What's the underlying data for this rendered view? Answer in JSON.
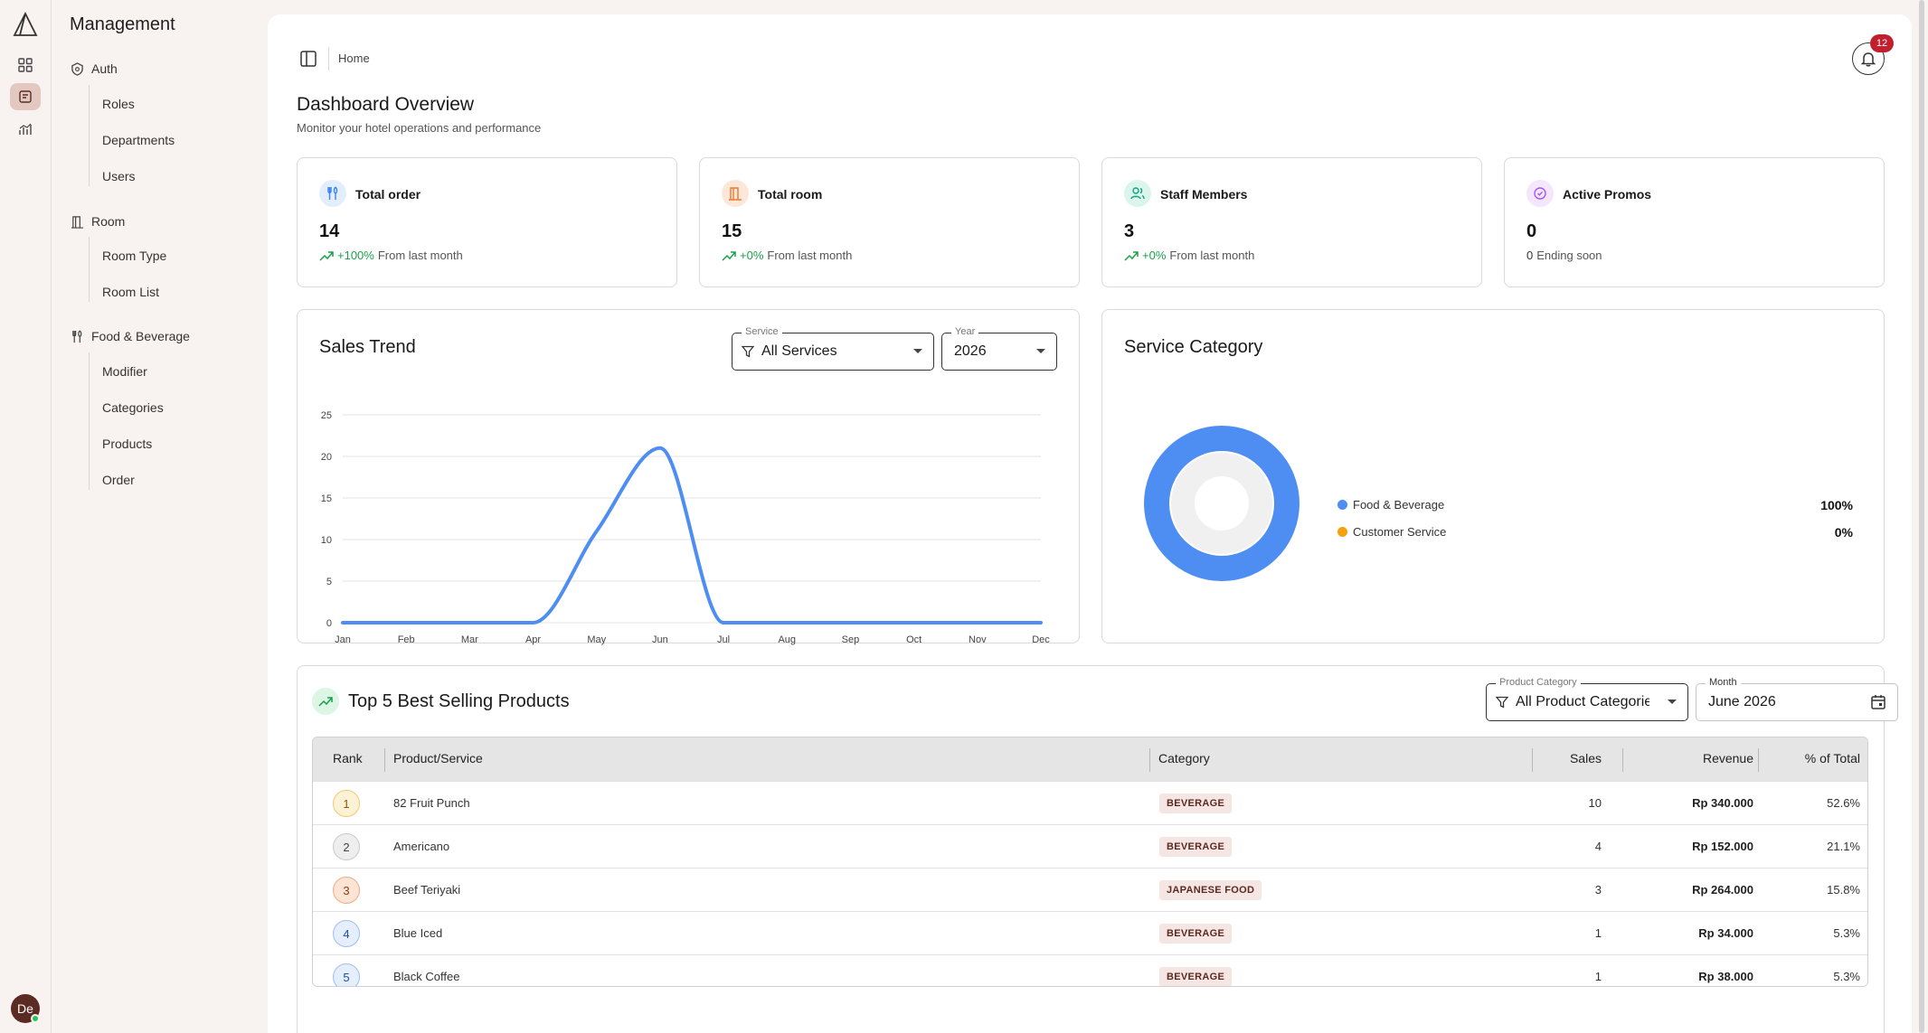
{
  "sidebar": {
    "title": "Management",
    "groups": [
      {
        "label": "Auth",
        "icon": "shield-icon",
        "items": [
          "Roles",
          "Departments",
          "Users"
        ]
      },
      {
        "label": "Room",
        "icon": "door-icon",
        "items": [
          "Room Type",
          "Room List"
        ]
      },
      {
        "label": "Food & Beverage",
        "icon": "utensils-icon",
        "items": [
          "Modifier",
          "Categories",
          "Products",
          "Order"
        ]
      }
    ]
  },
  "rail": {
    "avatar_initials": "De"
  },
  "header": {
    "breadcrumb": "Home",
    "notification_count": "12",
    "title": "Dashboard Overview",
    "subtitle": "Monitor your hotel operations and performance"
  },
  "stats": [
    {
      "label": "Total order",
      "value": "14",
      "change": "+100%",
      "note": "From last month",
      "icon": "utensils-icon",
      "color": "#3b82f6",
      "bg": "#e3eefd"
    },
    {
      "label": "Total room",
      "value": "15",
      "change": "+0%",
      "note": "From last month",
      "icon": "door-icon",
      "color": "#ea7a2e",
      "bg": "#fde7d9"
    },
    {
      "label": "Staff Members",
      "value": "3",
      "change": "+0%",
      "note": "From last month",
      "icon": "users-icon",
      "color": "#10a37f",
      "bg": "#dcf5ec"
    },
    {
      "label": "Active Promos",
      "value": "0",
      "change": "0",
      "note": "Ending soon",
      "icon": "badge-check-icon",
      "color": "#a855f7",
      "bg": "#f3e6fd"
    }
  ],
  "sales_trend": {
    "title": "Sales Trend",
    "service_label": "Service",
    "service_value": "All Services",
    "year_label": "Year",
    "year_value": "2026"
  },
  "service_category": {
    "title": "Service Category",
    "legend": [
      {
        "name": "Food & Beverage",
        "pct": "100%",
        "color": "#4e8ef2"
      },
      {
        "name": "Customer Service",
        "pct": "0%",
        "color": "#f5a10e"
      }
    ]
  },
  "top_products": {
    "title": "Top 5 Best Selling Products",
    "category_label": "Product Category",
    "category_value": "All Product Categories",
    "month_label": "Month",
    "month_value": "June 2026",
    "columns": [
      "Rank",
      "Product/Service",
      "Category",
      "Sales",
      "Revenue",
      "% of Total"
    ],
    "rows": [
      {
        "rank": "1",
        "name": "82 Fruit Punch",
        "category": "BEVERAGE",
        "sales": "10",
        "revenue": "Rp 340.000",
        "pct": "52.6%",
        "rank_bg": "#fdf1d6",
        "rank_border": "#f2c96b",
        "rank_color": "#8a5a00"
      },
      {
        "rank": "2",
        "name": "Americano",
        "category": "BEVERAGE",
        "sales": "4",
        "revenue": "Rp 152.000",
        "pct": "21.1%",
        "rank_bg": "#eeeeee",
        "rank_border": "#c9c9c9",
        "rank_color": "#444444"
      },
      {
        "rank": "3",
        "name": "Beef Teriyaki",
        "category": "JAPANESE FOOD",
        "sales": "3",
        "revenue": "Rp 264.000",
        "pct": "15.8%",
        "rank_bg": "#fde4d4",
        "rank_border": "#f0a983",
        "rank_color": "#8a3d10"
      },
      {
        "rank": "4",
        "name": "Blue Iced",
        "category": "BEVERAGE",
        "sales": "1",
        "revenue": "Rp 34.000",
        "pct": "5.3%",
        "rank_bg": "#e4eefd",
        "rank_border": "#9dbdf2",
        "rank_color": "#1f4fa8"
      },
      {
        "rank": "5",
        "name": "Black Coffee",
        "category": "BEVERAGE",
        "sales": "1",
        "revenue": "Rp 38.000",
        "pct": "5.3%",
        "rank_bg": "#e4eefd",
        "rank_border": "#9dbdf2",
        "rank_color": "#1f4fa8"
      }
    ]
  },
  "chart_data": [
    {
      "type": "line",
      "title": "Sales Trend",
      "categories": [
        "Jan",
        "Feb",
        "Mar",
        "Apr",
        "May",
        "Jun",
        "Jul",
        "Aug",
        "Sep",
        "Oct",
        "Nov",
        "Dec"
      ],
      "series": [
        {
          "values": [
            0,
            0,
            0,
            0,
            11,
            21,
            0,
            0,
            0,
            0,
            0,
            0
          ],
          "color": "#4e8ef2"
        }
      ],
      "ylim": [
        0,
        25
      ],
      "yticks": [
        0,
        5,
        10,
        15,
        20,
        25
      ],
      "grid": true
    },
    {
      "type": "pie",
      "title": "Service Category",
      "categories": [
        "Food & Beverage",
        "Customer Service"
      ],
      "values": [
        100,
        0
      ],
      "colors": [
        "#4e8ef2",
        "#f5a10e"
      ]
    }
  ]
}
